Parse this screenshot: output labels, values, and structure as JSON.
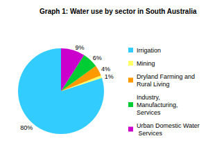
{
  "chart_data": {
    "type": "pie",
    "title": "Graph 1: Water use by sector in South Australia",
    "categories": [
      "Irrigation",
      "Mining",
      "Dryland Farming and Rural Living",
      "Industry, Manufacturing, Services",
      "Urban Domestic Water Services"
    ],
    "values": [
      80,
      1,
      4,
      6,
      9
    ],
    "value_labels": [
      "80%",
      "1%",
      "4%",
      "6%",
      "9%"
    ],
    "colors": [
      "#33ccff",
      "#ffff66",
      "#ff9900",
      "#00cc33",
      "#cc00cc"
    ],
    "legend": "right",
    "data_labels": true
  }
}
